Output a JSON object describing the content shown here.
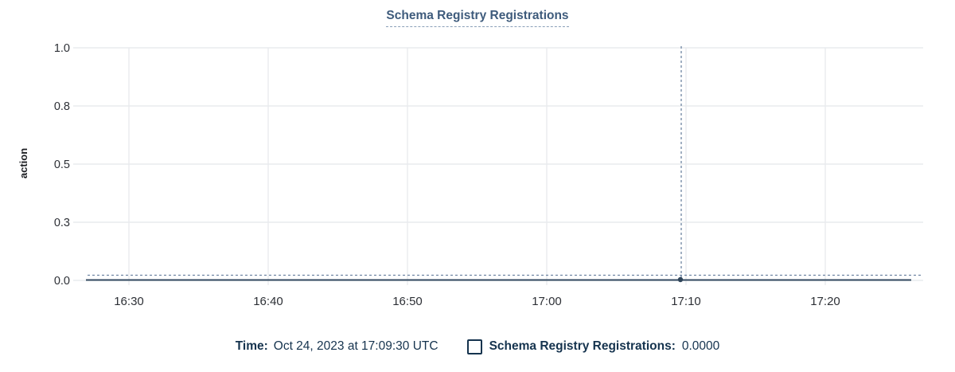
{
  "title": "Schema Registry Registrations",
  "y_axis": {
    "label": "action",
    "tick_labels_top_to_bottom": [
      "1.0",
      "0.8",
      "0.5",
      "0.3",
      "0.0"
    ]
  },
  "x_axis": {
    "tick_labels": [
      "16:30",
      "16:40",
      "16:50",
      "17:00",
      "17:10",
      "17:20"
    ]
  },
  "legend": {
    "time_label": "Time:",
    "time_value": "Oct 24, 2023 at 17:09:30 UTC",
    "checkbox_checked": false,
    "series_label": "Schema Registry Registrations:",
    "series_value": "0.0000"
  },
  "chart_data": {
    "type": "line",
    "title": "Schema Registry Registrations",
    "xlabel": "",
    "ylabel": "action",
    "x_tick_labels": [
      "16:30",
      "16:40",
      "16:50",
      "17:00",
      "17:10",
      "17:20"
    ],
    "y_tick_labels": [
      "0.0",
      "0.3",
      "0.5",
      "0.8",
      "1.0"
    ],
    "y_tick_values": [
      0,
      0.25,
      0.5,
      0.75,
      1.0
    ],
    "ylim": [
      0,
      1
    ],
    "x_range": [
      "16:26:30",
      "17:26:30"
    ],
    "grid": true,
    "legend_position": "bottom",
    "series": [
      {
        "name": "Schema Registry Registrations",
        "constant_value": 0,
        "points": [
          {
            "x": "16:26:30",
            "y": 0
          },
          {
            "x": "17:09:30",
            "y": 0
          },
          {
            "x": "17:26:30",
            "y": 0
          }
        ]
      }
    ],
    "hovered_point": {
      "time": "Oct 24, 2023 at 17:09:30 UTC",
      "x_tick": "17:09:30",
      "value": 0.0,
      "value_display": "0.0000"
    }
  },
  "colors": {
    "title": "#3e5b7c",
    "title_underline": "#8ba0b8",
    "axis_tick_text": "#2d3036",
    "axis_label_text": "#1c1e22",
    "gridline": "#e9ebee",
    "series_line": "#334960",
    "crosshair": "#6e84a2",
    "hover_point": "#2f4459",
    "legend_text": "#15334e"
  }
}
